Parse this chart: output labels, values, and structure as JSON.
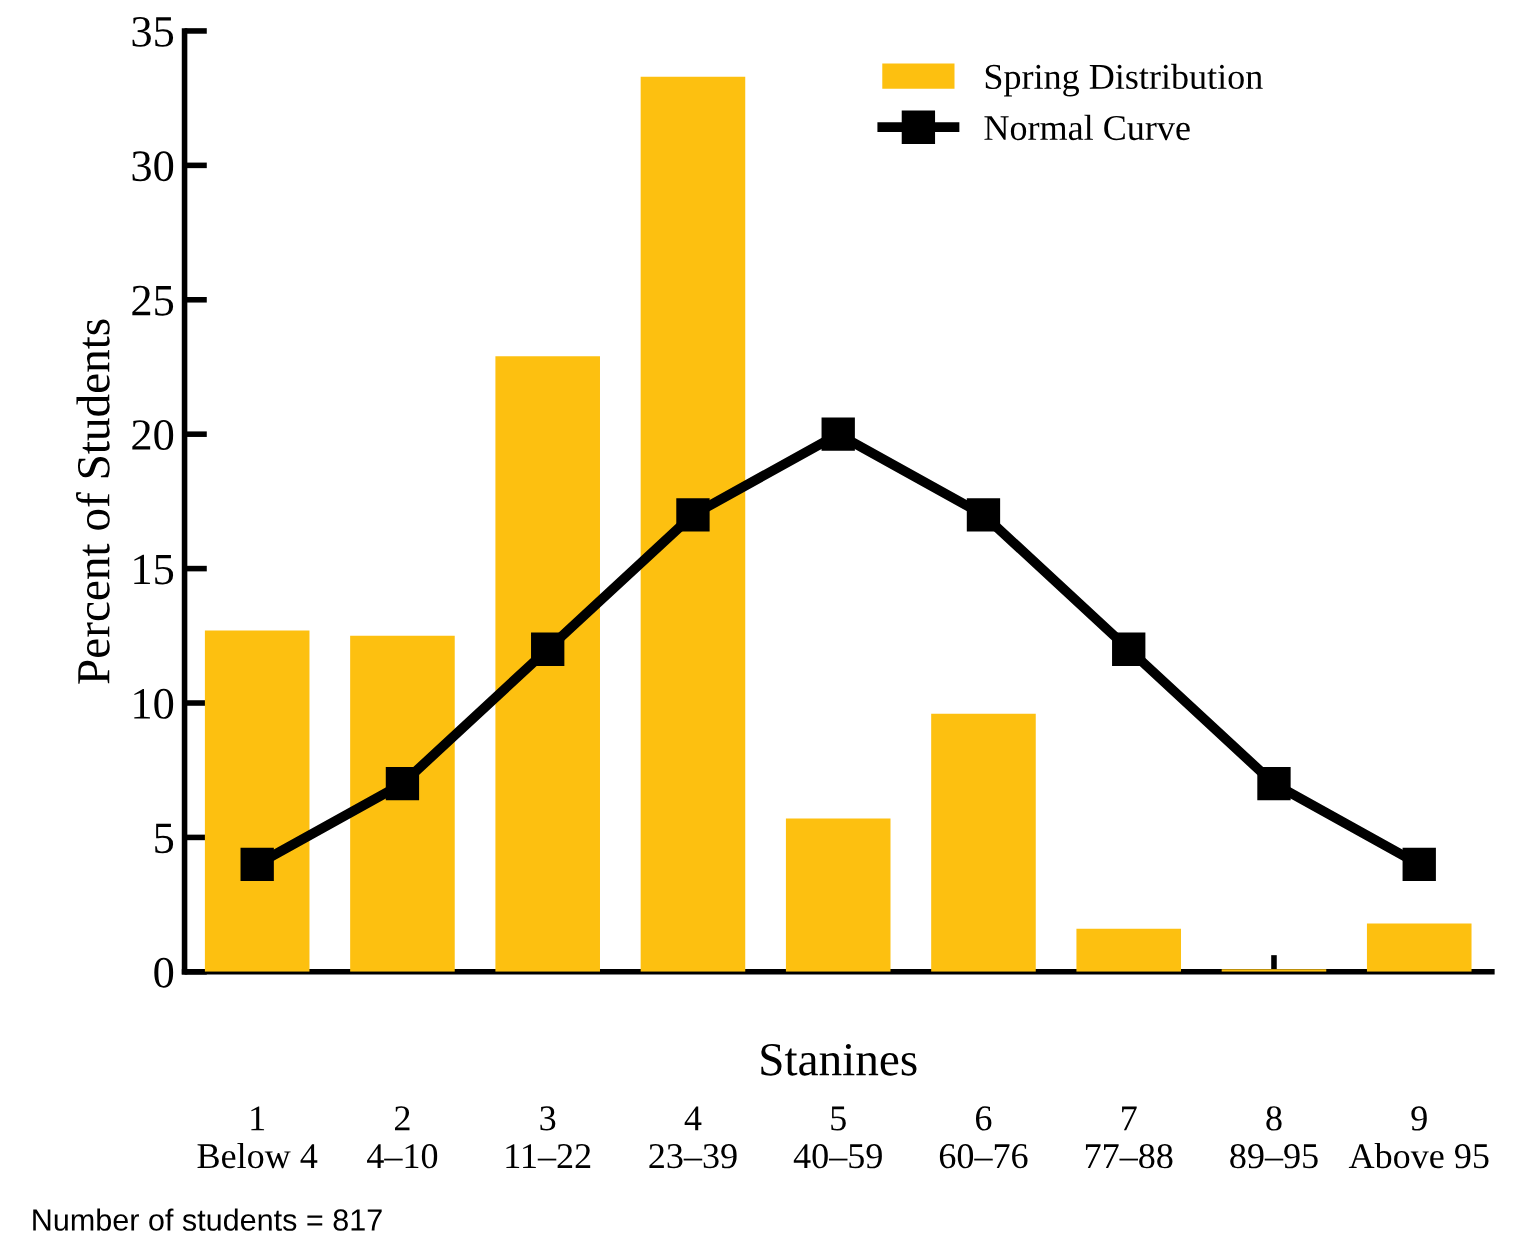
{
  "chart_data": {
    "type": "bar",
    "xlabel": "Stanines",
    "ylabel": "Percent of Students",
    "categories": [
      "1\nBelow 4",
      "2\n4–10",
      "3\n11–22",
      "4\n23–39",
      "5\n40–59",
      "6\n60–76",
      "7\n77–88",
      "8\n89–95",
      "9\nAbove 95"
    ],
    "series": [
      {
        "name": "Spring Distribution",
        "color": "#fdc010",
        "values": [
          12.7,
          12.5,
          22.9,
          33.3,
          5.7,
          9.6,
          1.6,
          0.1,
          1.8
        ]
      },
      {
        "name": "Normal Curve",
        "type": "line",
        "color": "#000000",
        "values": [
          4,
          7,
          12,
          17,
          20,
          17,
          12,
          7,
          4
        ],
        "marker": "square"
      }
    ],
    "ylim": [
      0,
      35
    ],
    "yticks": [
      0,
      5,
      10,
      15,
      20,
      25,
      30,
      35
    ],
    "grid": false,
    "legend": "top right",
    "annotations": [
      "Number of students = 817"
    ]
  }
}
